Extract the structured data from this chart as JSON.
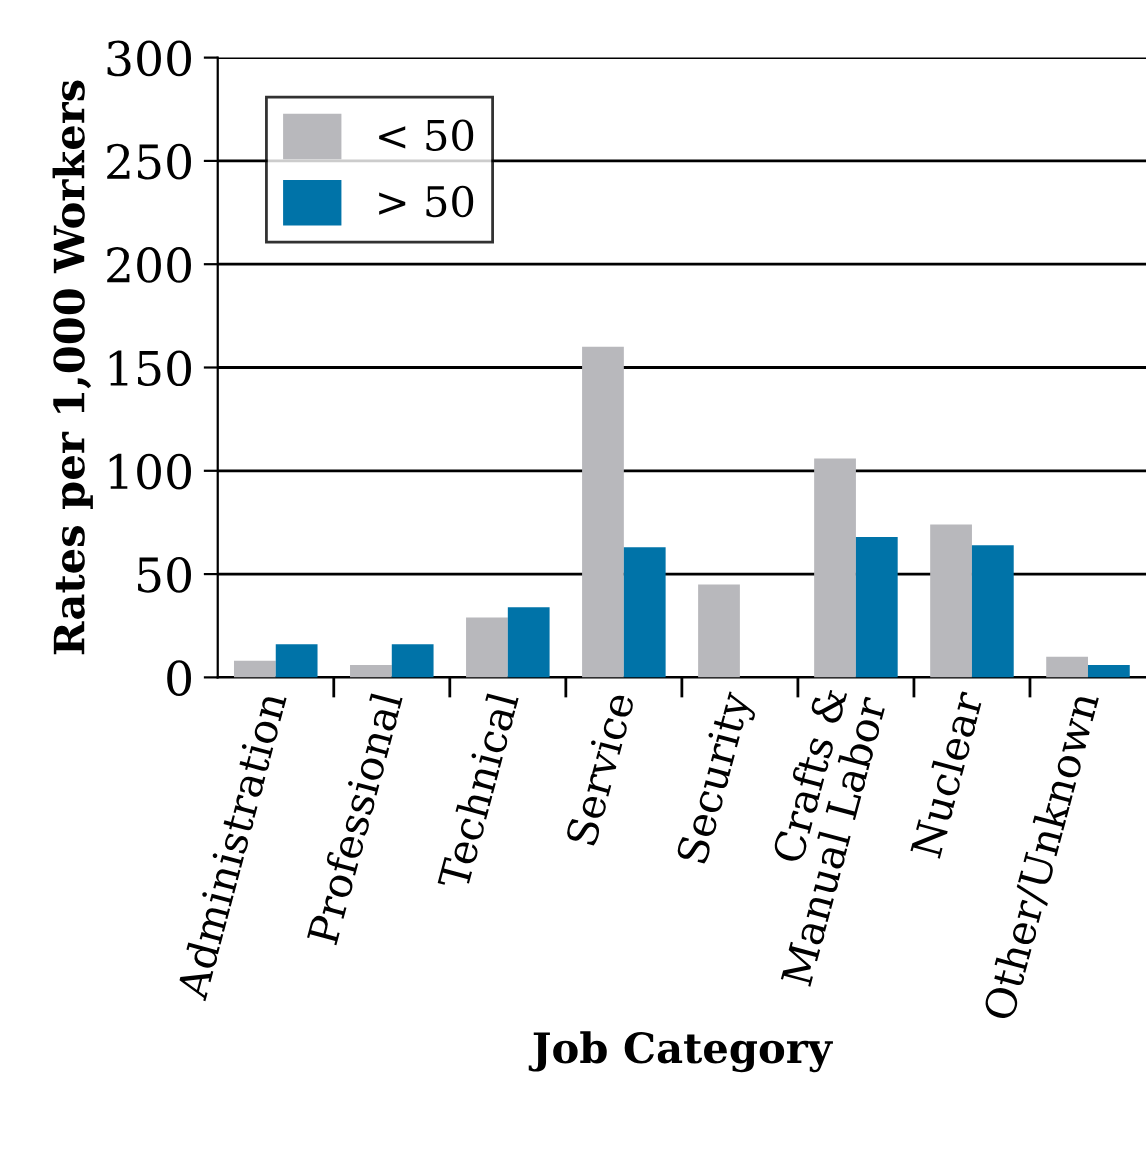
{
  "chart_data": {
    "type": "bar",
    "xlabel": "Job Category",
    "ylabel": "Rates per 1,000 Workers",
    "categories": [
      "Administration",
      "Professional",
      "Technical",
      "Service",
      "Security",
      "Crafts &\nManual Labor",
      "Nuclear",
      "Other/Unknown"
    ],
    "series": [
      {
        "name": "< 50",
        "color": "#b8b8bc",
        "values": [
          8,
          6,
          29,
          160,
          45,
          106,
          74,
          10
        ]
      },
      {
        "name": "> 50",
        "color": "#0073a8",
        "values": [
          16,
          16,
          34,
          63,
          null,
          68,
          64,
          6
        ]
      }
    ],
    "ylim": [
      0,
      300
    ],
    "yticks": [
      0,
      50,
      100,
      150,
      200,
      250,
      300
    ],
    "grid": "y",
    "legend": "top left"
  }
}
